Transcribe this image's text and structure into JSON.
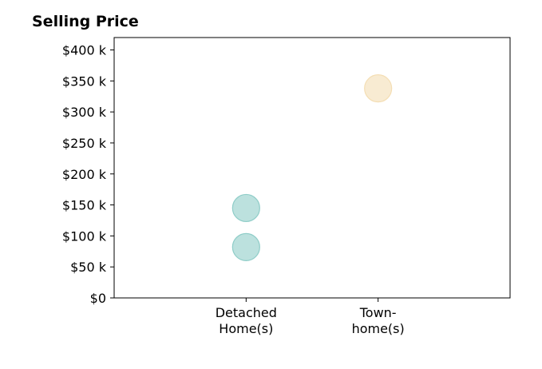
{
  "chart_data": {
    "type": "scatter",
    "title": "Selling Price",
    "xlabel": "",
    "ylabel": "",
    "categories": [
      "Detached\nHome(s)",
      "Town-\nhome(s)"
    ],
    "x_tick_lines": [
      [
        "Detached",
        "Home(s)"
      ],
      [
        "Town-",
        "home(s)"
      ]
    ],
    "xlim": [
      -1,
      2
    ],
    "ylim": [
      0,
      420000
    ],
    "y_ticks": [
      0,
      50000,
      100000,
      150000,
      200000,
      250000,
      300000,
      350000,
      400000
    ],
    "y_tick_labels": [
      "$0",
      "$50 k",
      "$100 k",
      "$150 k",
      "$200 k",
      "$250 k",
      "$300 k",
      "$350 k",
      "$400 k"
    ],
    "grid": false,
    "legend": "none",
    "points": [
      {
        "category": "Detached\nHome(s)",
        "x": 0,
        "y": 145000,
        "color": "#8fcdc8"
      },
      {
        "category": "Detached\nHome(s)",
        "x": 0,
        "y": 82000,
        "color": "#8fcdc8"
      },
      {
        "category": "Town-\nhome(s)",
        "x": 1,
        "y": 338000,
        "color": "#f4deb4"
      }
    ]
  }
}
